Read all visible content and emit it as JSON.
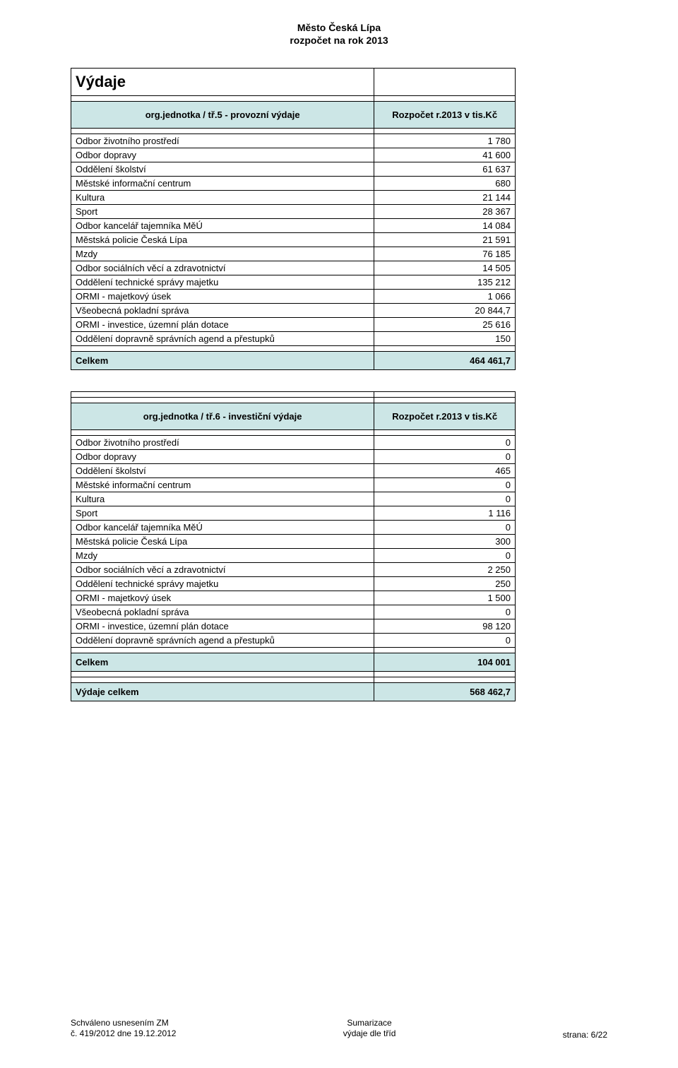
{
  "header": {
    "line1": "Město Česká Lípa",
    "line2": "rozpočet na rok 2013"
  },
  "section1": {
    "title": "Výdaje",
    "header_label": "org.jednotka / tř.5 - provozní výdaje",
    "header_value": "Rozpočet r.2013     v tis.Kč",
    "rows": [
      {
        "label": "Odbor životního prostředí",
        "value": "1 780"
      },
      {
        "label": "Odbor dopravy",
        "value": "41 600"
      },
      {
        "label": "Oddělení školství",
        "value": "61 637"
      },
      {
        "label": "Městské informační centrum",
        "value": "680"
      },
      {
        "label": "Kultura",
        "value": "21 144"
      },
      {
        "label": "Sport",
        "value": "28 367"
      },
      {
        "label": "Odbor kancelář tajemníka MěÚ",
        "value": "14 084"
      },
      {
        "label": "Městská policie Česká Lípa",
        "value": "21 591"
      },
      {
        "label": "Mzdy",
        "value": "76 185"
      },
      {
        "label": "Odbor sociálních věcí a zdravotnictví",
        "value": "14 505"
      },
      {
        "label": "Oddělení technické správy majetku",
        "value": "135 212"
      },
      {
        "label": "ORMI - majetkový úsek",
        "value": "1 066"
      },
      {
        "label": "Všeobecná pokladní správa",
        "value": "20 844,7"
      },
      {
        "label": "ORMI - investice, územní plán dotace",
        "value": "25 616"
      },
      {
        "label": "Oddělení dopravně správních agend a přestupků",
        "value": "150"
      }
    ],
    "total_label": "Celkem",
    "total_value": "464 461,7"
  },
  "section2": {
    "header_label": "org.jednotka / tř.6 - investiční výdaje",
    "header_value": "Rozpočet r.2013     v tis.Kč",
    "rows": [
      {
        "label": "Odbor životního prostředí",
        "value": "0"
      },
      {
        "label": "Odbor dopravy",
        "value": "0"
      },
      {
        "label": "Oddělení školství",
        "value": "465"
      },
      {
        "label": "Městské informační centrum",
        "value": "0"
      },
      {
        "label": "Kultura",
        "value": "0"
      },
      {
        "label": "Sport",
        "value": "1 116"
      },
      {
        "label": "Odbor kancelář tajemníka MěÚ",
        "value": "0"
      },
      {
        "label": "Městská policie Česká Lípa",
        "value": "300"
      },
      {
        "label": "Mzdy",
        "value": "0"
      },
      {
        "label": "Odbor sociálních věcí a zdravotnictví",
        "value": "2 250"
      },
      {
        "label": "Oddělení technické správy majetku",
        "value": "250"
      },
      {
        "label": "ORMI - majetkový úsek",
        "value": "1 500"
      },
      {
        "label": "Všeobecná pokladní správa",
        "value": "0"
      },
      {
        "label": "ORMI - investice, územní plán dotace",
        "value": "98 120"
      },
      {
        "label": "Oddělení dopravně správních agend a přestupků",
        "value": "0"
      }
    ],
    "total_label": "Celkem",
    "total_value": "104 001",
    "grand_total_label": "Výdaje celkem",
    "grand_total_value": "568 462,7"
  },
  "footer": {
    "left1": "Schváleno usnesením ZM",
    "left2": "č. 419/2012 dne 19.12.2012",
    "center1": "Sumarizace",
    "center2": "výdaje dle tříd",
    "right": "strana: 6/22"
  },
  "colors": {
    "highlight": "#cce6e6",
    "border": "#000000",
    "background": "#ffffff"
  }
}
